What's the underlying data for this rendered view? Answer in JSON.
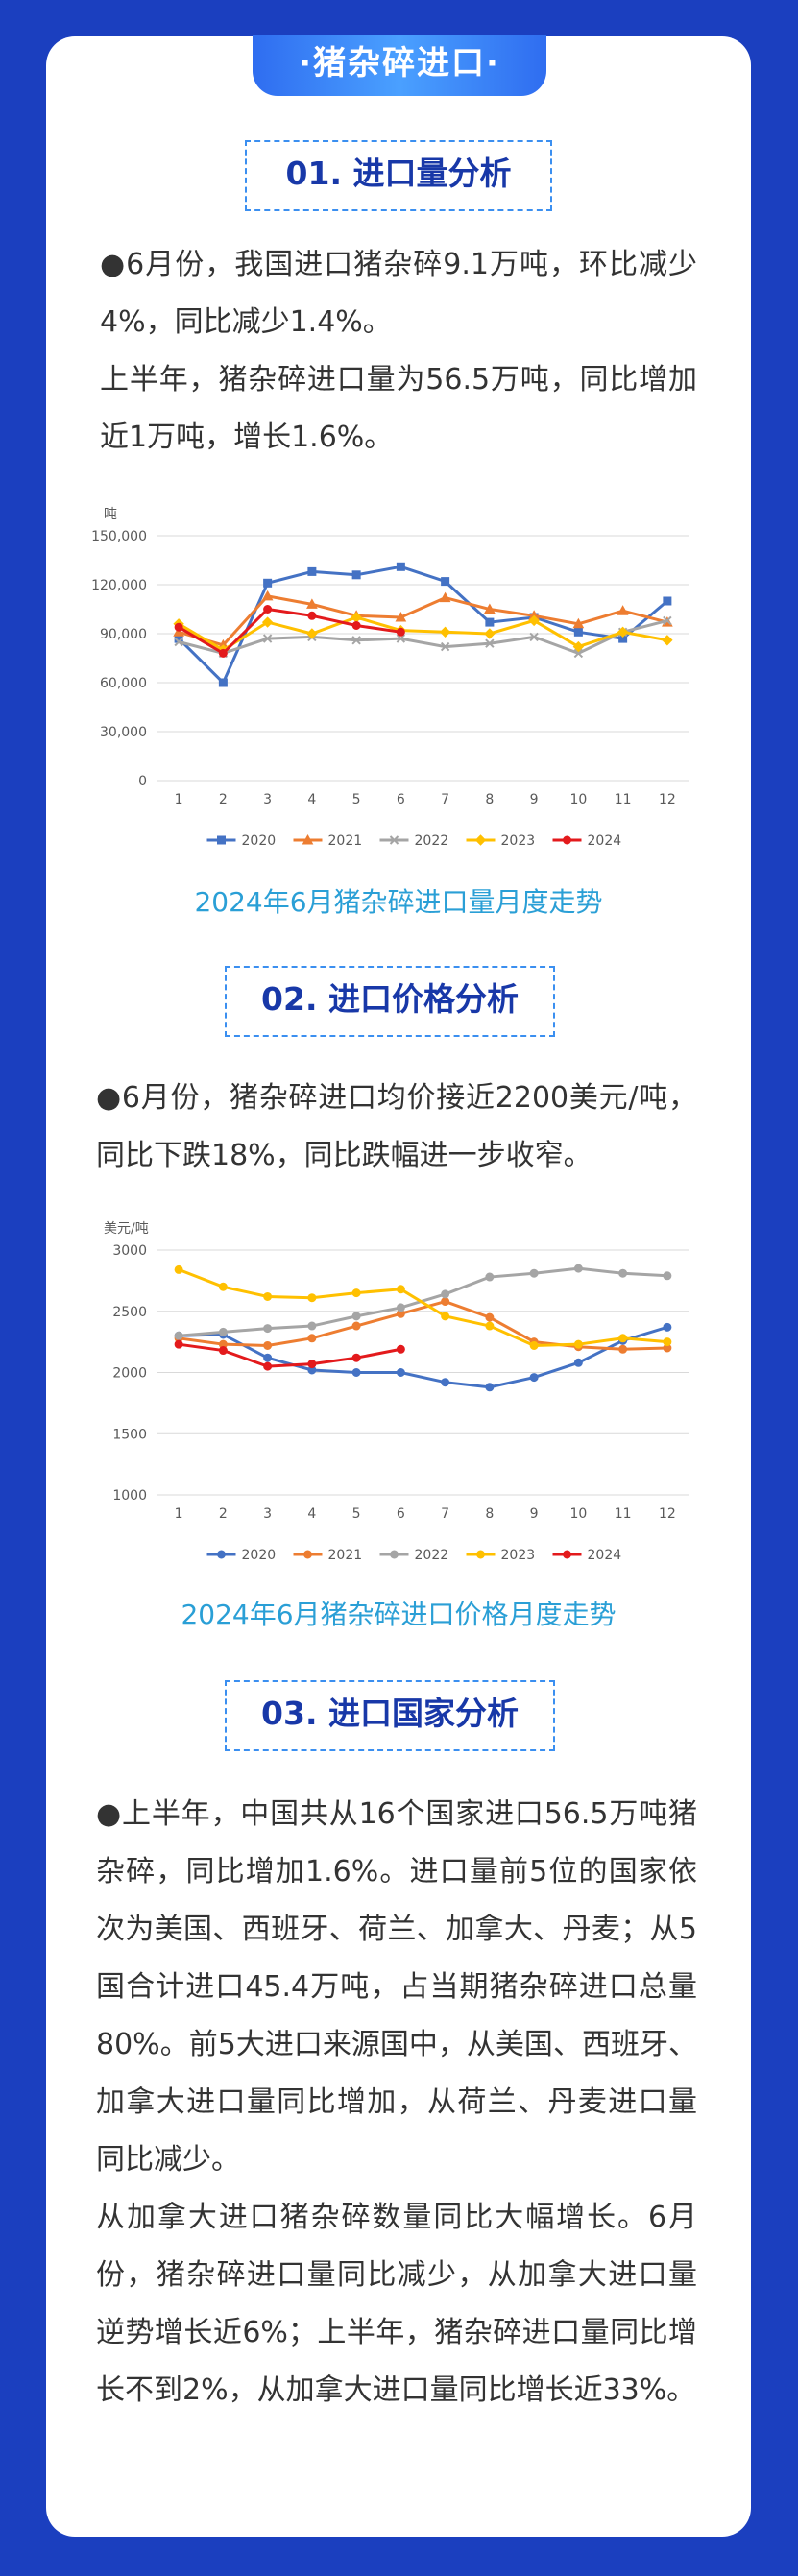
{
  "header": {
    "title": "·猪杂碎进口·"
  },
  "sections": [
    {
      "title": "01. 进口量分析",
      "paragraphs": [
        "●6月份，我国进口猪杂碎9.1万吨，环比减少4%，同比减少1.4%。",
        "上半年，猪杂碎进口量为56.5万吨，同比增加近1万吨，增长1.6%。"
      ]
    },
    {
      "title": "02. 进口价格分析",
      "paragraphs": [
        "●6月份，猪杂碎进口均价接近2200美元/吨，同比下跌18%，同比跌幅进一步收窄。"
      ]
    },
    {
      "title": "03. 进口国家分析",
      "paragraphs": [
        "●上半年，中国共从16个国家进口56.5万吨猪杂碎，同比增加1.6%。进口量前5位的国家依次为美国、西班牙、荷兰、加拿大、丹麦；从5国合计进口45.4万吨，占当期猪杂碎进口总量80%。前5大进口来源国中，从美国、西班牙、加拿大进口量同比增加，从荷兰、丹麦进口量同比减少。",
        "从加拿大进口猪杂碎数量同比大幅增长。6月份，猪杂碎进口量同比减少，从加拿大进口量逆势增长近6%；上半年，猪杂碎进口量同比增长不到2%，从加拿大进口量同比增长近33%。"
      ]
    }
  ],
  "chart_data": [
    {
      "type": "line",
      "title": "2024年6月猪杂碎进口量月度走势",
      "y_label": "吨",
      "grid": true,
      "categories": [
        "1",
        "2",
        "3",
        "4",
        "5",
        "6",
        "7",
        "8",
        "9",
        "10",
        "11",
        "12"
      ],
      "ylim": [
        0,
        150000
      ],
      "yticks": [
        0,
        {
          "value": 30000,
          "label": "30,000"
        },
        {
          "value": 60000,
          "label": "60,000"
        },
        {
          "value": 90000,
          "label": "90,000"
        },
        {
          "value": 120000,
          "label": "120,000"
        },
        {
          "value": 150000,
          "label": "150,000"
        }
      ],
      "series": [
        {
          "name": "2020",
          "color": "#4472c4",
          "marker": "square",
          "values": [
            87000,
            60000,
            121000,
            128000,
            126000,
            131000,
            122000,
            97000,
            100000,
            91000,
            87000,
            110000
          ]
        },
        {
          "name": "2021",
          "color": "#ed7d31",
          "marker": "triangle",
          "values": [
            91000,
            83000,
            113000,
            108000,
            101000,
            100000,
            112000,
            105000,
            101000,
            96000,
            104000,
            97000
          ]
        },
        {
          "name": "2022",
          "color": "#a5a5a5",
          "marker": "cross",
          "values": [
            85000,
            78000,
            87000,
            88000,
            86000,
            87000,
            82000,
            84000,
            88000,
            78000,
            91000,
            98000
          ]
        },
        {
          "name": "2023",
          "color": "#ffc000",
          "marker": "diamond",
          "values": [
            96000,
            80000,
            97000,
            90000,
            100000,
            92000,
            91000,
            90000,
            98000,
            82000,
            91000,
            86000
          ]
        },
        {
          "name": "2024",
          "color": "#e31a1c",
          "marker": "circle",
          "values": [
            94000,
            78000,
            105000,
            101000,
            95000,
            91000,
            null,
            null,
            null,
            null,
            null,
            null
          ]
        }
      ]
    },
    {
      "type": "line",
      "title": "2024年6月猪杂碎进口价格月度走势",
      "y_label": "美元/吨",
      "grid": true,
      "categories": [
        "1",
        "2",
        "3",
        "4",
        "5",
        "6",
        "7",
        "8",
        "9",
        "10",
        "11",
        "12"
      ],
      "ylim": [
        1000,
        3000
      ],
      "yticks": [
        1000,
        1500,
        2000,
        2500,
        3000
      ],
      "series": [
        {
          "name": "2020",
          "color": "#4472c4",
          "marker": "circle",
          "values": [
            2300,
            2310,
            2120,
            2020,
            2000,
            2000,
            1920,
            1880,
            1960,
            2080,
            2260,
            2370
          ]
        },
        {
          "name": "2021",
          "color": "#ed7d31",
          "marker": "circle",
          "values": [
            2280,
            2230,
            2220,
            2280,
            2380,
            2480,
            2580,
            2450,
            2250,
            2210,
            2190,
            2200
          ]
        },
        {
          "name": "2022",
          "color": "#a5a5a5",
          "marker": "circle",
          "values": [
            2300,
            2330,
            2360,
            2380,
            2460,
            2530,
            2640,
            2780,
            2810,
            2850,
            2810,
            2790
          ]
        },
        {
          "name": "2023",
          "color": "#ffc000",
          "marker": "circle",
          "values": [
            2840,
            2700,
            2620,
            2610,
            2650,
            2680,
            2460,
            2380,
            2220,
            2230,
            2280,
            2250
          ]
        },
        {
          "name": "2024",
          "color": "#e31a1c",
          "marker": "circle",
          "values": [
            2230,
            2180,
            2050,
            2070,
            2120,
            2190,
            null,
            null,
            null,
            null,
            null,
            null
          ]
        }
      ]
    }
  ]
}
